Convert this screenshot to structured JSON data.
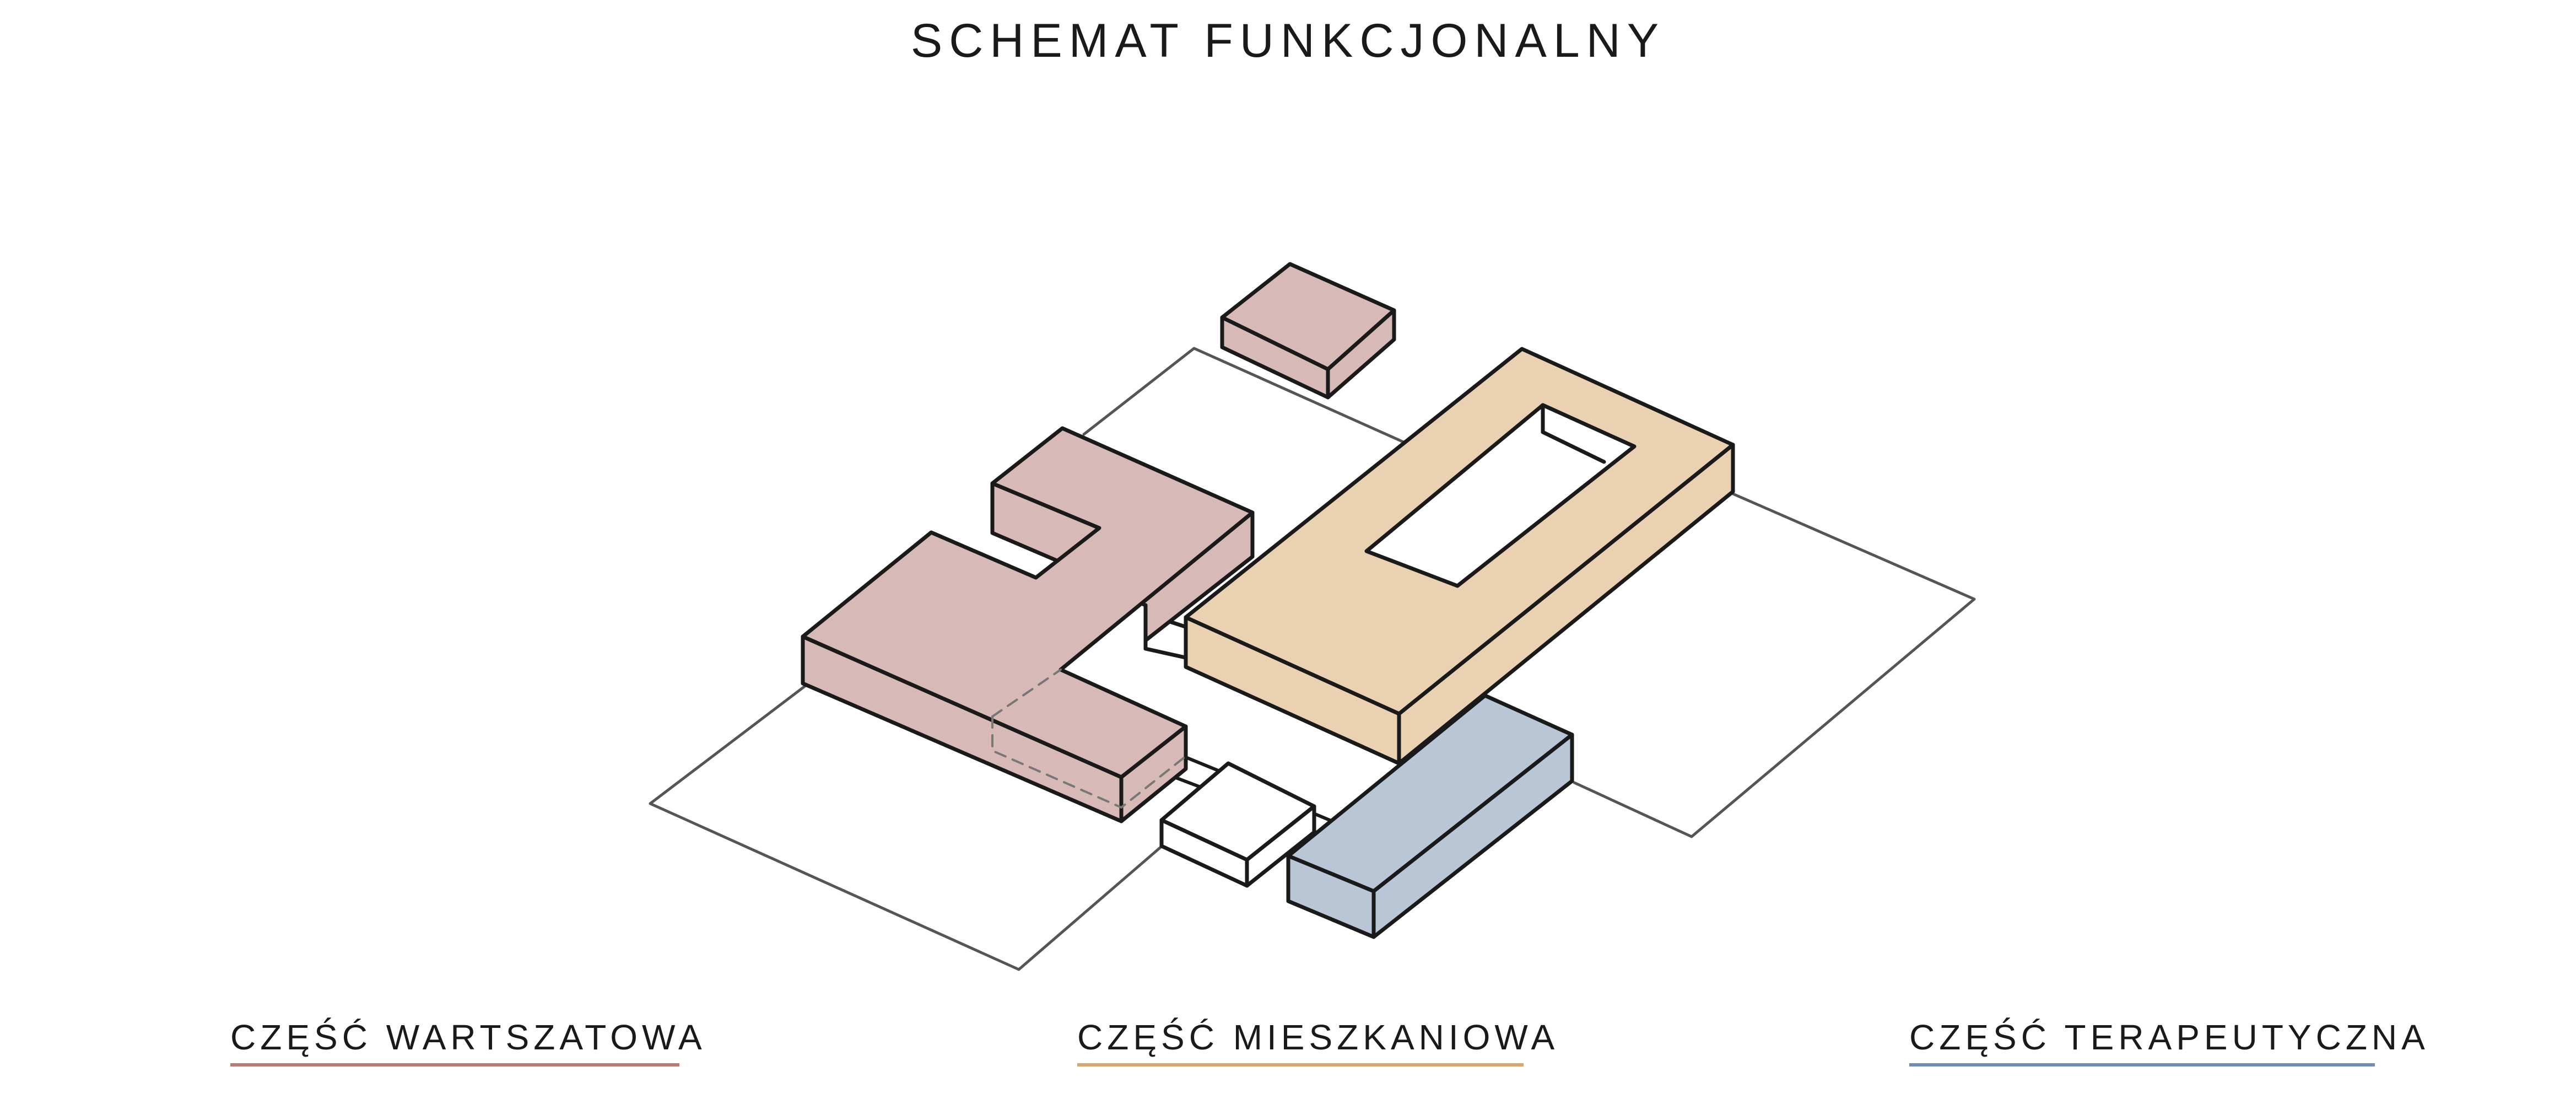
{
  "title": "SCHEMAT FUNKCJONALNY",
  "colors": {
    "workshop": "#d7bab7",
    "residential": "#e9d1b2",
    "therapy": "#b9c6d6",
    "outline": "#1a1a1a",
    "site": "#555555",
    "workshop_line": "#bf7a72",
    "residential_line": "#dca56a",
    "therapy_line": "#6f8db8"
  },
  "legend": [
    {
      "label": "CZĘŚĆ WARTSZATOWA",
      "key": "workshop"
    },
    {
      "label": "CZĘŚĆ MIESZKANIOWA",
      "key": "residential"
    },
    {
      "label": "CZĘŚĆ TERAPEUTYCZNA",
      "key": "therapy"
    }
  ]
}
